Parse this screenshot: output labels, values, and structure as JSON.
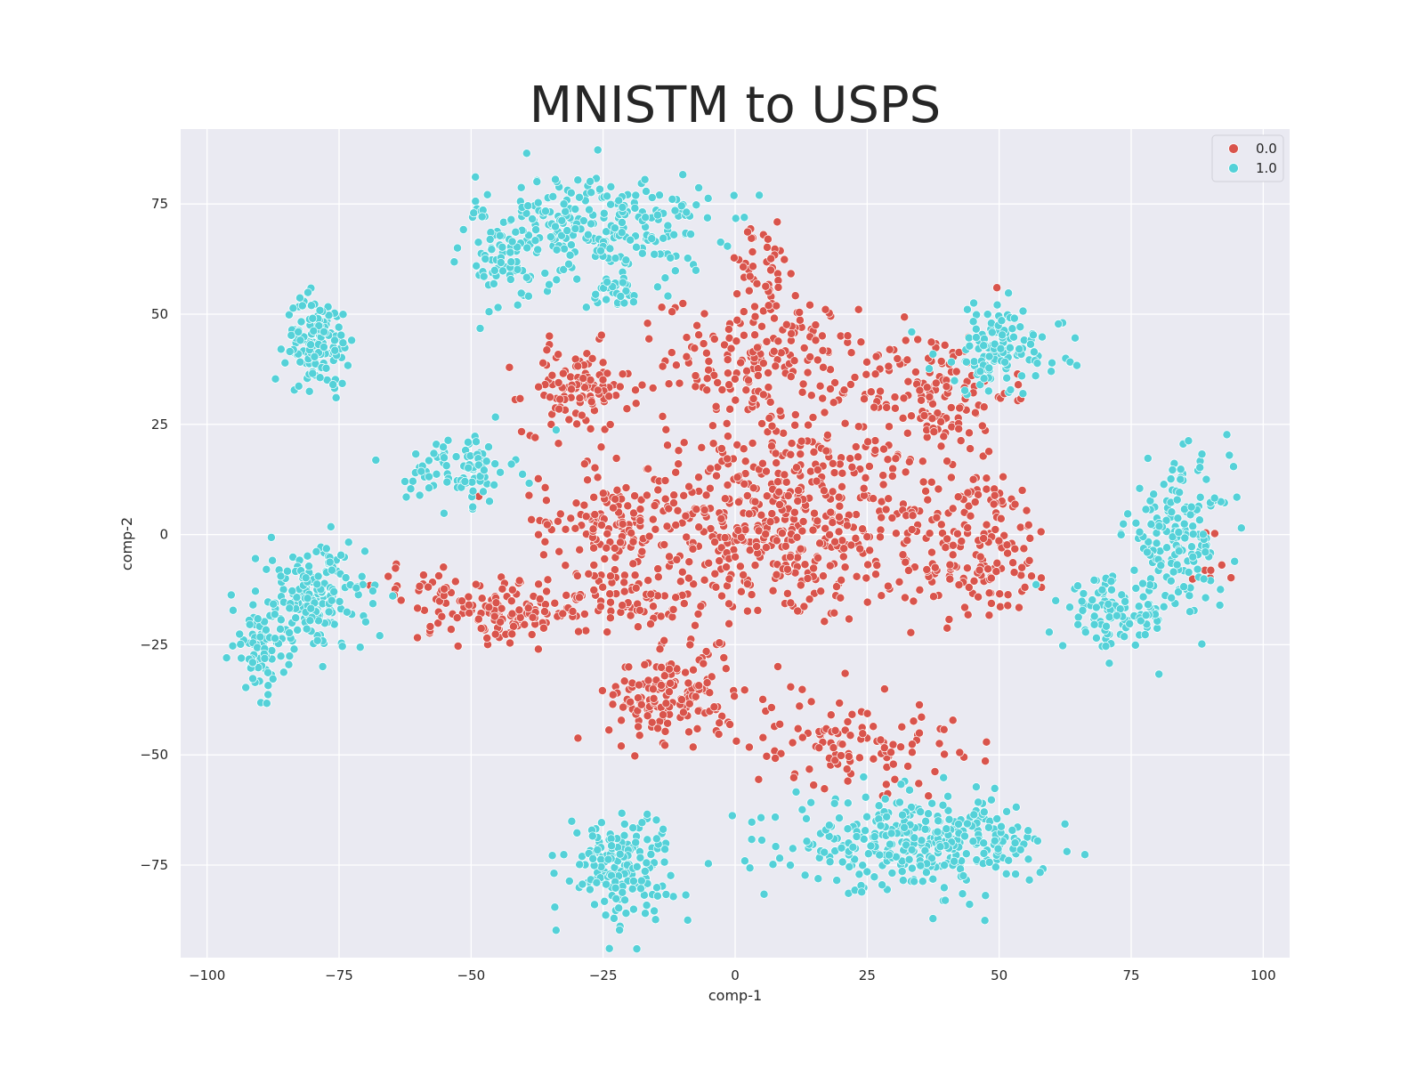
{
  "chart_data": {
    "type": "scatter",
    "title": "MNISTM to USPS",
    "xlabel": "comp-1",
    "ylabel": "comp-2",
    "xlim": [
      -105,
      105
    ],
    "ylim": [
      -96,
      92
    ],
    "x_ticks": [
      -100,
      -75,
      -50,
      -25,
      0,
      25,
      50,
      75,
      100
    ],
    "y_ticks": [
      -75,
      -50,
      -25,
      0,
      25,
      50,
      75
    ],
    "grid": true,
    "legend_position": "top-right",
    "background_color": "#eaeaf2",
    "series": [
      {
        "name": "0.0",
        "color": "#d9544c",
        "clusters": [
          {
            "cx": 8,
            "cy": 3,
            "sx": 14,
            "sy": 12,
            "n": 520
          },
          {
            "cx": 5,
            "cy": 40,
            "sx": 9,
            "sy": 7,
            "n": 180
          },
          {
            "cx": 5,
            "cy": 60,
            "sx": 4,
            "sy": 5,
            "n": 40
          },
          {
            "cx": -30,
            "cy": 33,
            "sx": 5,
            "sy": 5,
            "n": 110
          },
          {
            "cx": 38,
            "cy": 32,
            "sx": 7,
            "sy": 7,
            "n": 140
          },
          {
            "cx": 45,
            "cy": -2,
            "sx": 8,
            "sy": 9,
            "n": 170
          },
          {
            "cx": -25,
            "cy": 3,
            "sx": 6,
            "sy": 6,
            "n": 110
          },
          {
            "cx": -42,
            "cy": -18,
            "sx": 6,
            "sy": 3,
            "n": 110
          },
          {
            "cx": -58,
            "cy": -14,
            "sx": 5,
            "sy": 4,
            "n": 40
          },
          {
            "cx": -20,
            "cy": -15,
            "sx": 7,
            "sy": 4,
            "n": 70
          },
          {
            "cx": -12,
            "cy": -37,
            "sx": 6,
            "sy": 5,
            "n": 150
          },
          {
            "cx": 22,
            "cy": -47,
            "sx": 10,
            "sy": 5,
            "n": 110
          },
          {
            "cx": 90,
            "cy": -5,
            "sx": 3,
            "sy": 5,
            "n": 8
          }
        ]
      },
      {
        "name": "1.0",
        "color": "#54d1d8",
        "clusters": [
          {
            "cx": -27,
            "cy": 70,
            "sx": 11,
            "sy": 6,
            "n": 280
          },
          {
            "cx": -45,
            "cy": 60,
            "sx": 5,
            "sy": 5,
            "n": 40
          },
          {
            "cx": -23,
            "cy": 55,
            "sx": 3,
            "sy": 2,
            "n": 30
          },
          {
            "cx": -79,
            "cy": 44,
            "sx": 3,
            "sy": 5,
            "n": 130
          },
          {
            "cx": -52,
            "cy": 15,
            "sx": 5,
            "sy": 4,
            "n": 90
          },
          {
            "cx": -80,
            "cy": -15,
            "sx": 5,
            "sy": 6,
            "n": 180
          },
          {
            "cx": -90,
            "cy": -26,
            "sx": 2.5,
            "sy": 5,
            "n": 80
          },
          {
            "cx": 50,
            "cy": 42,
            "sx": 6,
            "sy": 5,
            "n": 120
          },
          {
            "cx": 84,
            "cy": 0,
            "sx": 5,
            "sy": 8,
            "n": 160
          },
          {
            "cx": 72,
            "cy": -18,
            "sx": 5,
            "sy": 4,
            "n": 110
          },
          {
            "cx": 35,
            "cy": -70,
            "sx": 12,
            "sy": 5,
            "n": 340
          },
          {
            "cx": -22,
            "cy": -75,
            "sx": 5,
            "sy": 6,
            "n": 170
          }
        ]
      }
    ]
  }
}
